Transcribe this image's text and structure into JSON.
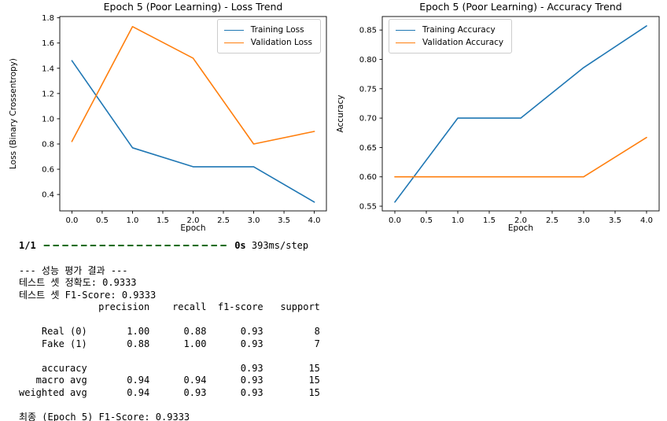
{
  "chart_data": [
    {
      "type": "line",
      "name": "loss-chart",
      "title": "Epoch 5 (Poor Learning) - Loss Trend",
      "xlabel": "Epoch",
      "ylabel": "Loss (Binary Crossentropy)",
      "x": [
        0,
        1,
        2,
        3,
        4
      ],
      "series": [
        {
          "name": "Training Loss",
          "color": "#1f77b4",
          "values": [
            1.46,
            0.77,
            0.62,
            0.62,
            0.34
          ]
        },
        {
          "name": "Validation Loss",
          "color": "#ff7f0e",
          "values": [
            0.82,
            1.73,
            1.48,
            0.8,
            0.9
          ]
        }
      ],
      "xlim": [
        -0.2,
        4.2
      ],
      "ylim": [
        0.27,
        1.81
      ],
      "xticks": {
        "values": [
          0,
          0.5,
          1,
          1.5,
          2,
          2.5,
          3,
          3.5,
          4
        ],
        "labels": [
          "0.0",
          "0.5",
          "1.0",
          "1.5",
          "2.0",
          "2.5",
          "3.0",
          "3.5",
          "4.0"
        ]
      },
      "yticks": {
        "values": [
          0.4,
          0.6,
          0.8,
          1.0,
          1.2,
          1.4,
          1.6,
          1.8
        ],
        "labels": [
          "0.4",
          "0.6",
          "0.8",
          "1.0",
          "1.2",
          "1.4",
          "1.6",
          "1.8"
        ]
      },
      "legend_position": "upper-right",
      "grid": false
    },
    {
      "type": "line",
      "name": "accuracy-chart",
      "title": "Epoch 5 (Poor Learning) - Accuracy Trend",
      "xlabel": "Epoch",
      "ylabel": "Accuracy",
      "x": [
        0,
        1,
        2,
        3,
        4
      ],
      "series": [
        {
          "name": "Training Accuracy",
          "color": "#1f77b4",
          "values": [
            0.557,
            0.7,
            0.7,
            0.786,
            0.857
          ]
        },
        {
          "name": "Validation Accuracy",
          "color": "#ff7f0e",
          "values": [
            0.6,
            0.6,
            0.6,
            0.6,
            0.667
          ]
        }
      ],
      "xlim": [
        -0.2,
        4.2
      ],
      "ylim": [
        0.542,
        0.873
      ],
      "xticks": {
        "values": [
          0,
          0.5,
          1,
          1.5,
          2,
          2.5,
          3,
          3.5,
          4
        ],
        "labels": [
          "0.0",
          "0.5",
          "1.0",
          "1.5",
          "2.0",
          "2.5",
          "3.0",
          "3.5",
          "4.0"
        ]
      },
      "yticks": {
        "values": [
          0.55,
          0.6,
          0.65,
          0.7,
          0.75,
          0.8,
          0.85
        ],
        "labels": [
          "0.55",
          "0.60",
          "0.65",
          "0.70",
          "0.75",
          "0.80",
          "0.85"
        ]
      },
      "legend_position": "upper-left",
      "grid": false
    }
  ],
  "console": {
    "progress_prefix": "1/1",
    "progress_bar": "━━━━━━━━━━━━━━━━━━━━",
    "progress_bar_color": "#0f6a0f",
    "progress_duration": "0s",
    "progress_step_time": "393ms/step",
    "eval_header": "--- 성능 평가 결과 ---",
    "test_accuracy_line": "테스트 셋 정확도: 0.9333",
    "test_f1_line": "테스트 셋 F1-Score: 0.9333",
    "report": {
      "columns": [
        "precision",
        "recall",
        "f1-score",
        "support"
      ],
      "rows": [
        {
          "label": "Real (0)",
          "cells": [
            "1.00",
            "0.88",
            "0.93",
            "8"
          ],
          "gap_before": false
        },
        {
          "label": "Fake (1)",
          "cells": [
            "0.88",
            "1.00",
            "0.93",
            "7"
          ],
          "gap_before": false
        },
        {
          "label": "accuracy",
          "cells": [
            "",
            "",
            "0.93",
            "15"
          ],
          "gap_before": true
        },
        {
          "label": "macro avg",
          "cells": [
            "0.94",
            "0.94",
            "0.93",
            "15"
          ],
          "gap_before": false
        },
        {
          "label": "weighted avg",
          "cells": [
            "0.94",
            "0.93",
            "0.93",
            "15"
          ],
          "gap_before": false
        }
      ]
    },
    "final_line": "최종 (Epoch 5) F1-Score: 0.9333"
  }
}
